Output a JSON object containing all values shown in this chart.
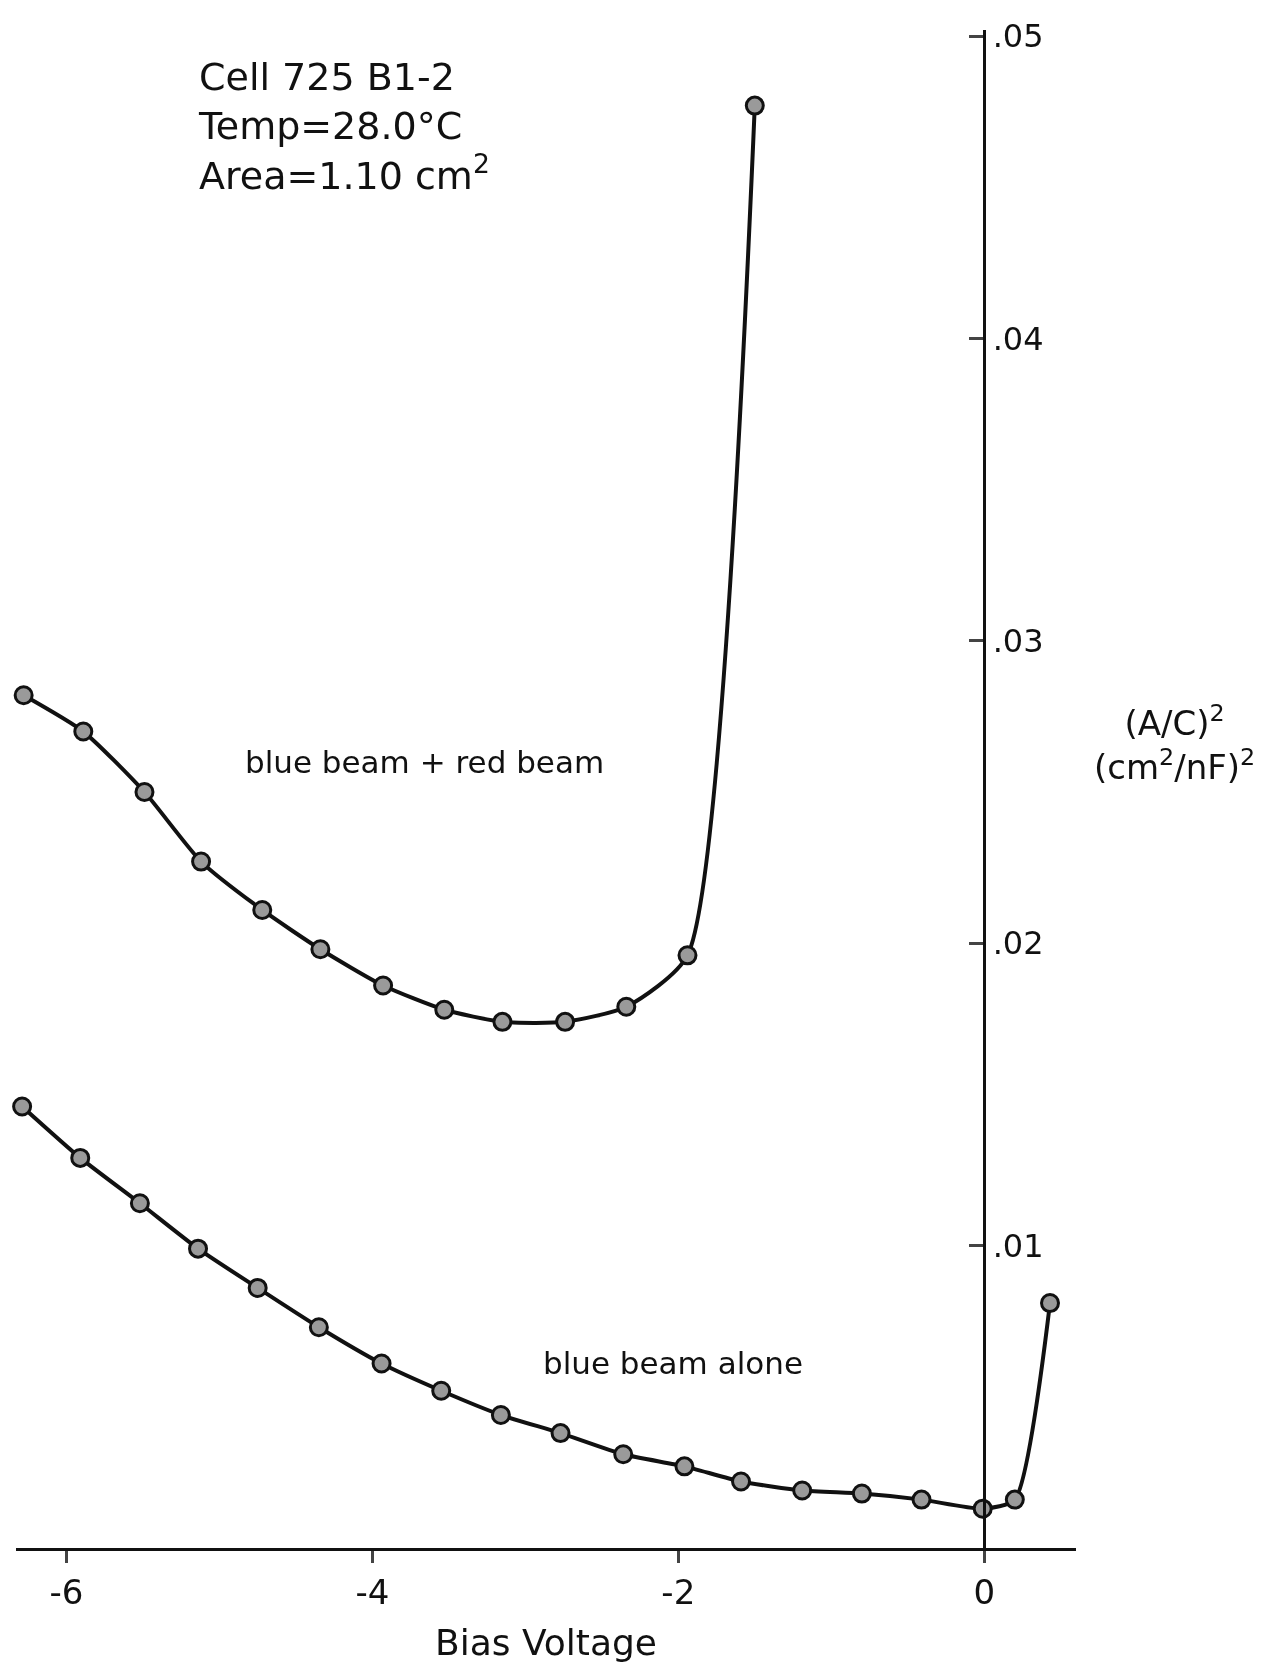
{
  "chart_data": {
    "type": "line",
    "title": "Cell 725 B1-2\nTemp=28.0°C\nArea=1.10 cm$^{2}$",
    "xlabel": "Bias Voltage",
    "ylabel": "(A/C)$^{2}$\n(cm$^{2}$/nF)$^{2}$",
    "xlim": [
      -6.33,
      0.6
    ],
    "xticks": [
      -6,
      -4,
      -2,
      0
    ],
    "ylim": [
      0,
      0.0502
    ],
    "yticks": [
      {
        "value": 0.01,
        "label": ".01"
      },
      {
        "value": 0.02,
        "label": ".02"
      },
      {
        "value": 0.03,
        "label": ".03"
      },
      {
        "value": 0.04,
        "label": ".04"
      },
      {
        "value": 0.05,
        "label": ".05"
      }
    ],
    "marker": "circle",
    "series": [
      {
        "name": "blue beam + red beam",
        "color": "#111111",
        "x": [
          -6.28,
          -5.89,
          -5.49,
          -5.12,
          -4.72,
          -4.34,
          -3.93,
          -3.53,
          -3.15,
          -2.74,
          -2.34,
          -1.94,
          -1.5
        ],
        "values": [
          0.0282,
          0.027,
          0.025,
          0.0227,
          0.0211,
          0.0198,
          0.0186,
          0.0178,
          0.0174,
          0.0174,
          0.0179,
          0.0196,
          0.0477
        ]
      },
      {
        "name": "blue beam alone",
        "color": "#111111",
        "x": [
          -6.29,
          -5.91,
          -5.52,
          -5.14,
          -4.75,
          -4.35,
          -3.94,
          -3.55,
          -3.16,
          -2.77,
          -2.36,
          -1.96,
          -1.59,
          -1.19,
          -0.8,
          -0.41,
          -0.01,
          0.2,
          0.43
        ],
        "values": [
          0.0146,
          0.0129,
          0.0114,
          0.0099,
          0.0086,
          0.0073,
          0.0061,
          0.0052,
          0.0044,
          0.0038,
          0.0031,
          0.0027,
          0.0022,
          0.0019,
          0.0018,
          0.0016,
          0.0013,
          0.0016,
          0.0081
        ]
      }
    ]
  }
}
